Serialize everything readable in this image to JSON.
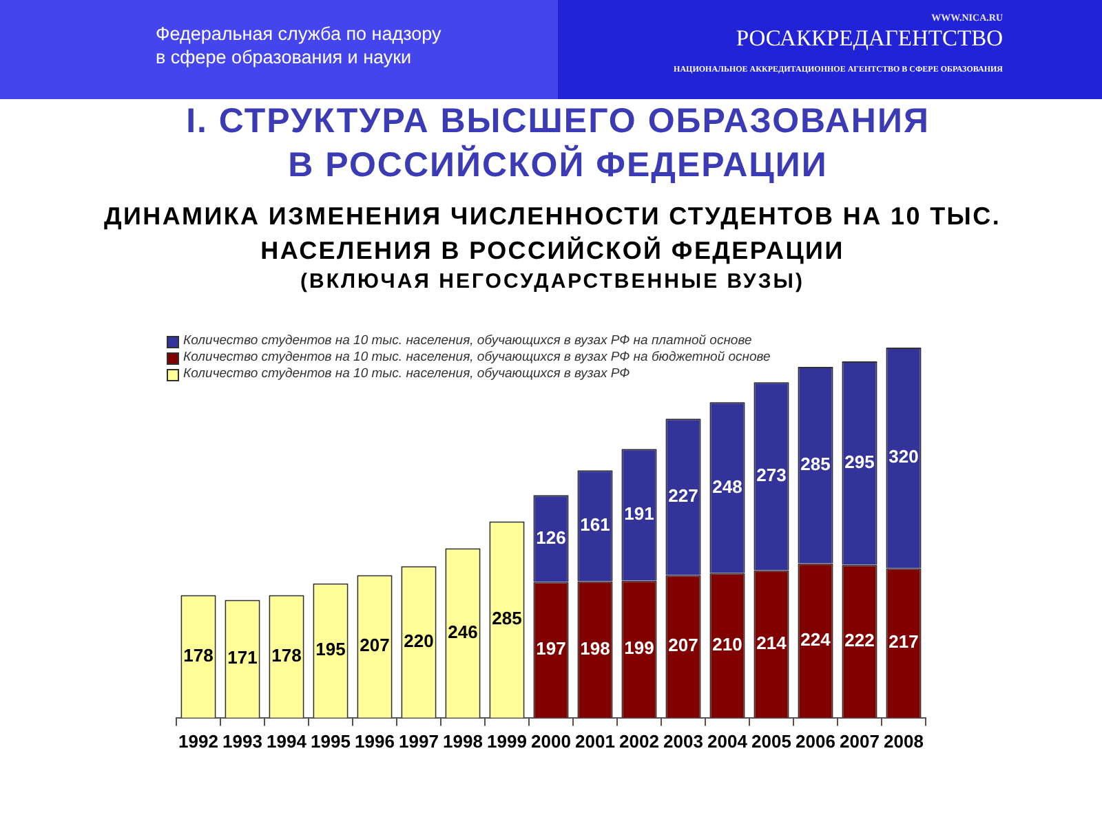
{
  "chart_data": {
    "type": "bar",
    "title": "I. СТРУКТУРА ВЫСШЕГО ОБРАЗОВАНИЯ В РОССИЙСКОЙ ФЕДЕРАЦИИ",
    "subtitle": "ДИНАМИКА ИЗМЕНЕНИЯ ЧИСЛЕННОСТИ СТУДЕНТОВ НА 10 ТЫС. НАСЕЛЕНИЯ В РОССИЙСКОЙ ФЕДЕРАЦИИ",
    "annotations": [
      "Федеральная служба по надзору в сфере образования и науки",
      "WWW.NICA.RU",
      "РОСАККРЕДАГЕНТСТВО",
      "НАЦИОНАЛЬНОЕ АККРЕДИТАЦИОННОЕ АГЕНТСТВО В СФЕРЕ ОБРАЗОВАНИЯ",
      "(ВКЛЮЧАЯ НЕГОСУДАРСТВЕННЫЕ ВУЗЫ)"
    ],
    "categories": [
      "1992",
      "1993",
      "1994",
      "1995",
      "1996",
      "1997",
      "1998",
      "1999",
      "2000",
      "2001",
      "2002",
      "2003",
      "2004",
      "2005",
      "2006",
      "2007",
      "2008"
    ],
    "series": [
      {
        "name": "Количество студентов на 10 тыс. населения, обучающихся в вузах РФ",
        "color": "#ffff99",
        "values": [
          178,
          171,
          178,
          195,
          207,
          220,
          246,
          285,
          null,
          null,
          null,
          null,
          null,
          null,
          null,
          null,
          null
        ]
      },
      {
        "name": "Количество студентов на 10 тыс. населения, обучающихся в вузах РФ на бюджетной основе",
        "color": "#800000",
        "values": [
          null,
          null,
          null,
          null,
          null,
          null,
          null,
          null,
          197,
          198,
          199,
          207,
          210,
          214,
          224,
          222,
          217
        ]
      },
      {
        "name": "Количество студентов на 10 тыс. населения, обучающихся в вузах РФ на платной основе",
        "color": "#333399",
        "values": [
          null,
          null,
          null,
          null,
          null,
          null,
          null,
          null,
          126,
          161,
          191,
          227,
          248,
          273,
          285,
          295,
          320
        ]
      }
    ],
    "stacked": true,
    "data_labels": true,
    "legend": "top left",
    "tick_labels": "x"
  }
}
